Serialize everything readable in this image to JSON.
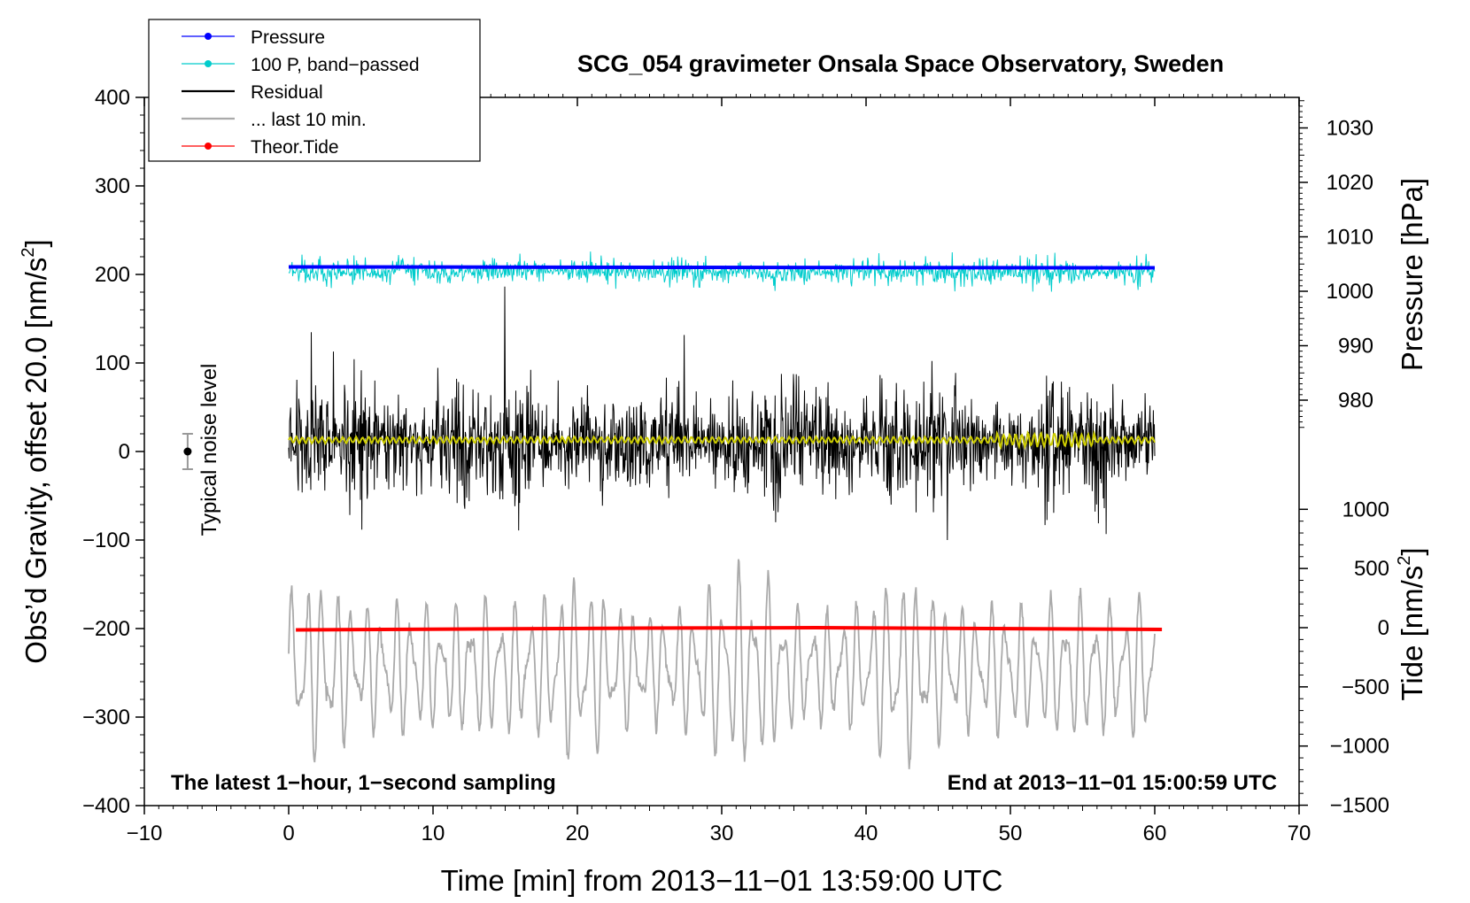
{
  "chart_data": {
    "type": "line",
    "title": "SCG_054 gravimeter Onsala Space Observatory, Sweden",
    "xlabel": "Time [min] from 2013−11−01 13:59:00 UTC",
    "ylabel_left": "Obs’d Gravity, offset 20.0 [nm/s²]",
    "ylabel_left_main": "Obs’d Gravity, offset 20.0 [nm/s",
    "ylabel_left_sup": "2",
    "ylabel_left_end": "]",
    "ylabel_right_top": "Pressure [hPa]",
    "ylabel_right_bottom": "Tide [nm/s²]",
    "ylabel_right_bottom_main": "Tide [nm/s",
    "ylabel_right_bottom_sup": "2",
    "ylabel_right_bottom_end": "]",
    "xlim": [
      -10,
      70
    ],
    "ylim": [
      -400,
      400
    ],
    "pressure_ylim": [
      960,
      1035
    ],
    "tide_ylim": [
      -1500,
      1500
    ],
    "x_ticks": [
      -10,
      0,
      10,
      20,
      30,
      40,
      50,
      60,
      70
    ],
    "x_tick_labels": [
      "−10",
      "0",
      "10",
      "20",
      "30",
      "40",
      "50",
      "60",
      "70"
    ],
    "y_left_ticks": [
      400,
      300,
      200,
      100,
      0,
      -100,
      -200,
      -300,
      -400
    ],
    "y_left_tick_labels": [
      "400",
      "300",
      "200",
      "100",
      "0",
      "−100",
      "−200",
      "−300",
      "−400"
    ],
    "pressure_ticks": [
      1030,
      1020,
      1010,
      1000,
      990,
      980
    ],
    "pressure_tick_labels": [
      "1030",
      "1020",
      "1010",
      "1000",
      "990",
      "980"
    ],
    "tide_ticks": [
      1000,
      500,
      0,
      -500,
      -1000,
      -1500
    ],
    "tide_tick_labels": [
      "1000",
      "500",
      "0",
      "−500",
      "−1000",
      "−1500"
    ],
    "annotations": {
      "left": "The latest 1−hour, 1−second sampling",
      "right": "End at 2013−11−01 15:00:59 UTC",
      "noise": "Typical noise level"
    },
    "noise_bar": {
      "x": -7,
      "y": 0,
      "half_range": 20
    },
    "legend": [
      {
        "label": "Pressure",
        "color": "#0000ff",
        "marker": true
      },
      {
        "label": "100 P, band−passed",
        "color": "#00cccc",
        "marker": true
      },
      {
        "label": "Residual",
        "color": "#000000",
        "marker": false
      },
      {
        "label": "... last 10 min.",
        "color": "#aaaaaa",
        "marker": false
      },
      {
        "label": "Theor.Tide",
        "color": "#ff0000",
        "marker": true
      }
    ],
    "series": [
      {
        "name": "Pressure",
        "color": "#0000ff",
        "axis": "left",
        "x_range": [
          0,
          60
        ],
        "level_start": 208.5,
        "level_end": 207.5
      },
      {
        "name": "100 P, band−passed",
        "color": "#00cccc",
        "axis": "left",
        "x_range": [
          0,
          60
        ],
        "center": 203,
        "amplitude": 22
      },
      {
        "name": "Residual",
        "color": "#000000",
        "axis": "left",
        "x_range": [
          0,
          60
        ],
        "center": 10,
        "amplitude": 160
      },
      {
        "name": "Residual (smoothed)",
        "color": "#cccc00",
        "axis": "left",
        "x_range": [
          0,
          60
        ],
        "center": 13,
        "amplitude": 4
      },
      {
        "name": "... last 10 min.",
        "color": "#aaaaaa",
        "axis": "left",
        "x_range": [
          0,
          60
        ],
        "center": -245,
        "amplitude": 120
      },
      {
        "name": "Theor.Tide",
        "color": "#ff0000",
        "axis": "left",
        "x_range": [
          0.5,
          60.5
        ],
        "values": [
          -201.5,
          -200.5,
          -199.5,
          -199,
          -200,
          -201
        ]
      }
    ]
  }
}
